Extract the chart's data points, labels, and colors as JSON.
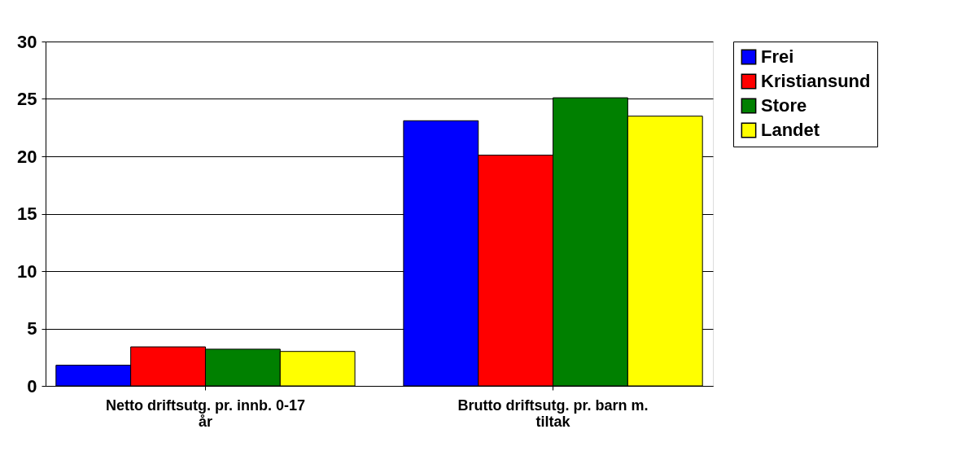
{
  "chart_data": {
    "type": "bar",
    "categories": [
      "Netto driftsutg. pr. innb. 0-17 år",
      "Brutto driftsutg. pr. barn m. tiltak"
    ],
    "series": [
      {
        "name": "Frei",
        "color": "#0000ff",
        "values": [
          1.8,
          23.1
        ]
      },
      {
        "name": "Kristiansund",
        "color": "#ff0000",
        "values": [
          3.4,
          20.1
        ]
      },
      {
        "name": "Store",
        "color": "#008000",
        "values": [
          3.2,
          25.1
        ]
      },
      {
        "name": "Landet",
        "color": "#ffff00",
        "values": [
          3.0,
          23.5
        ]
      }
    ],
    "ylim": [
      0,
      30
    ],
    "yticks": [
      0,
      5,
      10,
      15,
      20,
      25,
      30
    ],
    "grid": "y",
    "legend": "right"
  }
}
